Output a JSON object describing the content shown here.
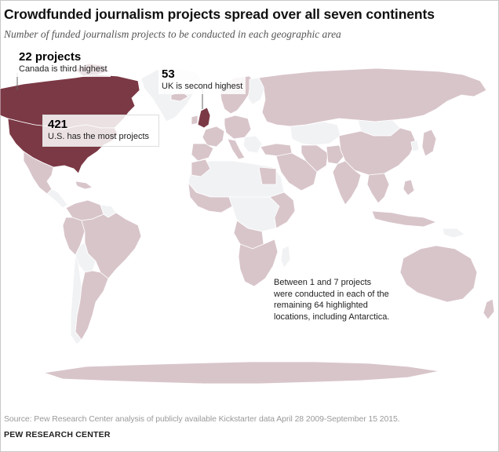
{
  "title": "Crowdfunded  journalism projects spread over all seven continents",
  "subtitle": "Number of funded journalism projects to be conducted in each geographic area",
  "colors": {
    "top": "#7b3945",
    "low": "#d8c5ca",
    "none": "#f1f2f4",
    "border": "#ffffff",
    "ocean": "#ffffff"
  },
  "callouts": {
    "us": {
      "value": "421",
      "text": "U.S. has the most projects"
    },
    "canada": {
      "value": "22 projects",
      "text": "Canada is third highest"
    },
    "uk": {
      "value": "53",
      "text": "UK is second highest"
    }
  },
  "note": "Between 1 and 7 projects were conducted in each of the remaining 64 highlighted locations, including Antarctica.",
  "source": "Source: Pew Research Center analysis of publicly available Kickstarter data April 28 2009-September 15 2015.",
  "brand": "PEW RESEARCH CENTER"
}
